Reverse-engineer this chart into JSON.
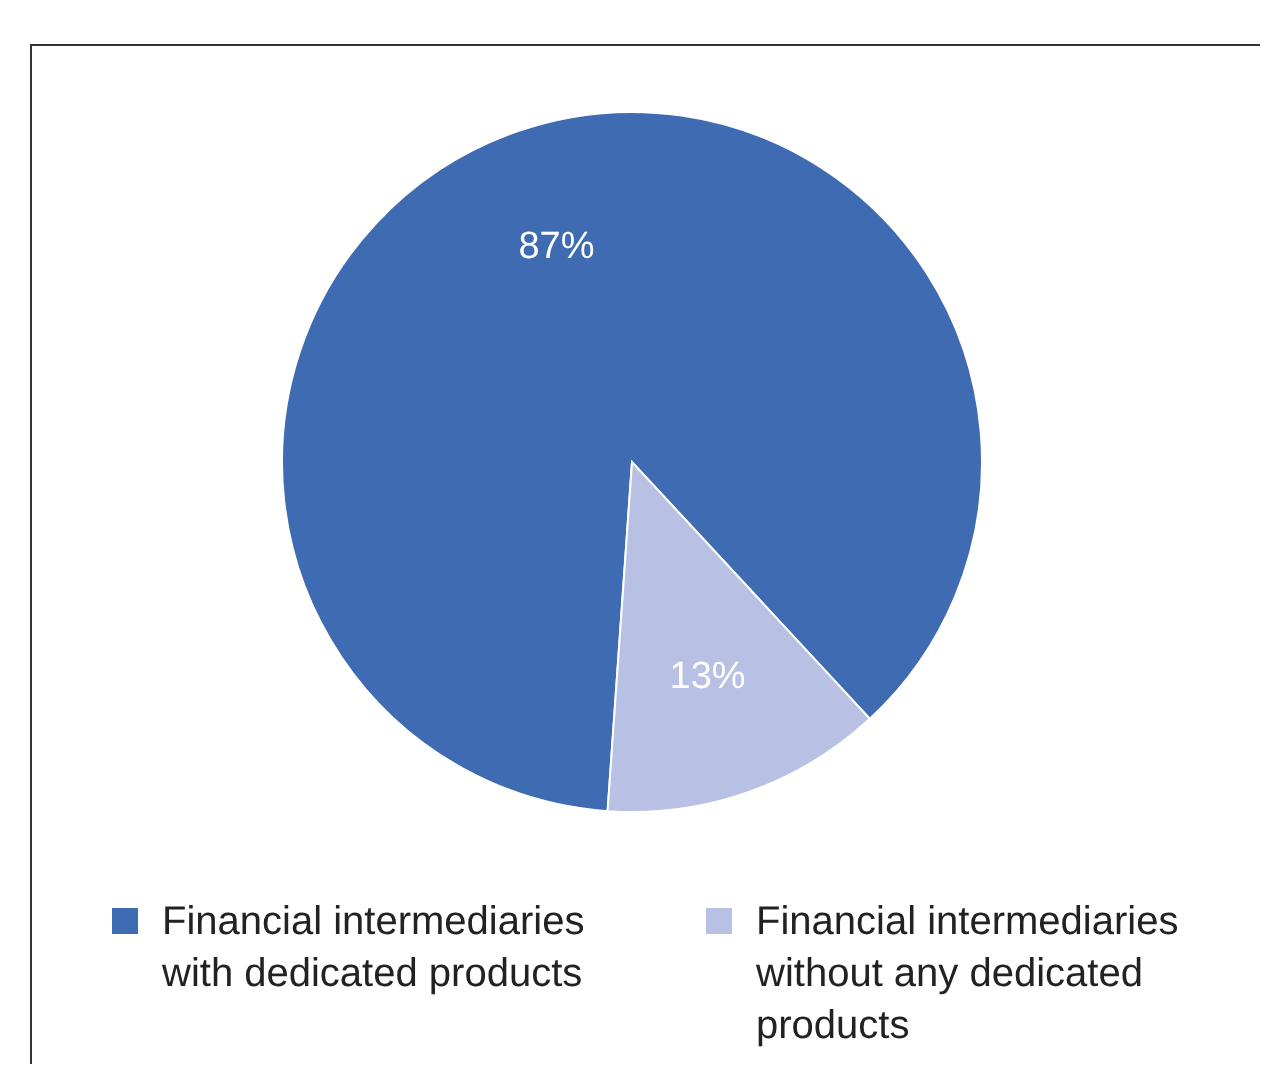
{
  "chart_data": {
    "type": "pie",
    "categories": [
      "Financial intermediaries with dedicated products",
      "Financial intermediaries without any dedicated products"
    ],
    "values": [
      87,
      13
    ],
    "colors": [
      "#3f6bb3",
      "#b8c1e4"
    ],
    "value_labels": [
      "87%",
      "13%"
    ],
    "legend": "bottom"
  }
}
